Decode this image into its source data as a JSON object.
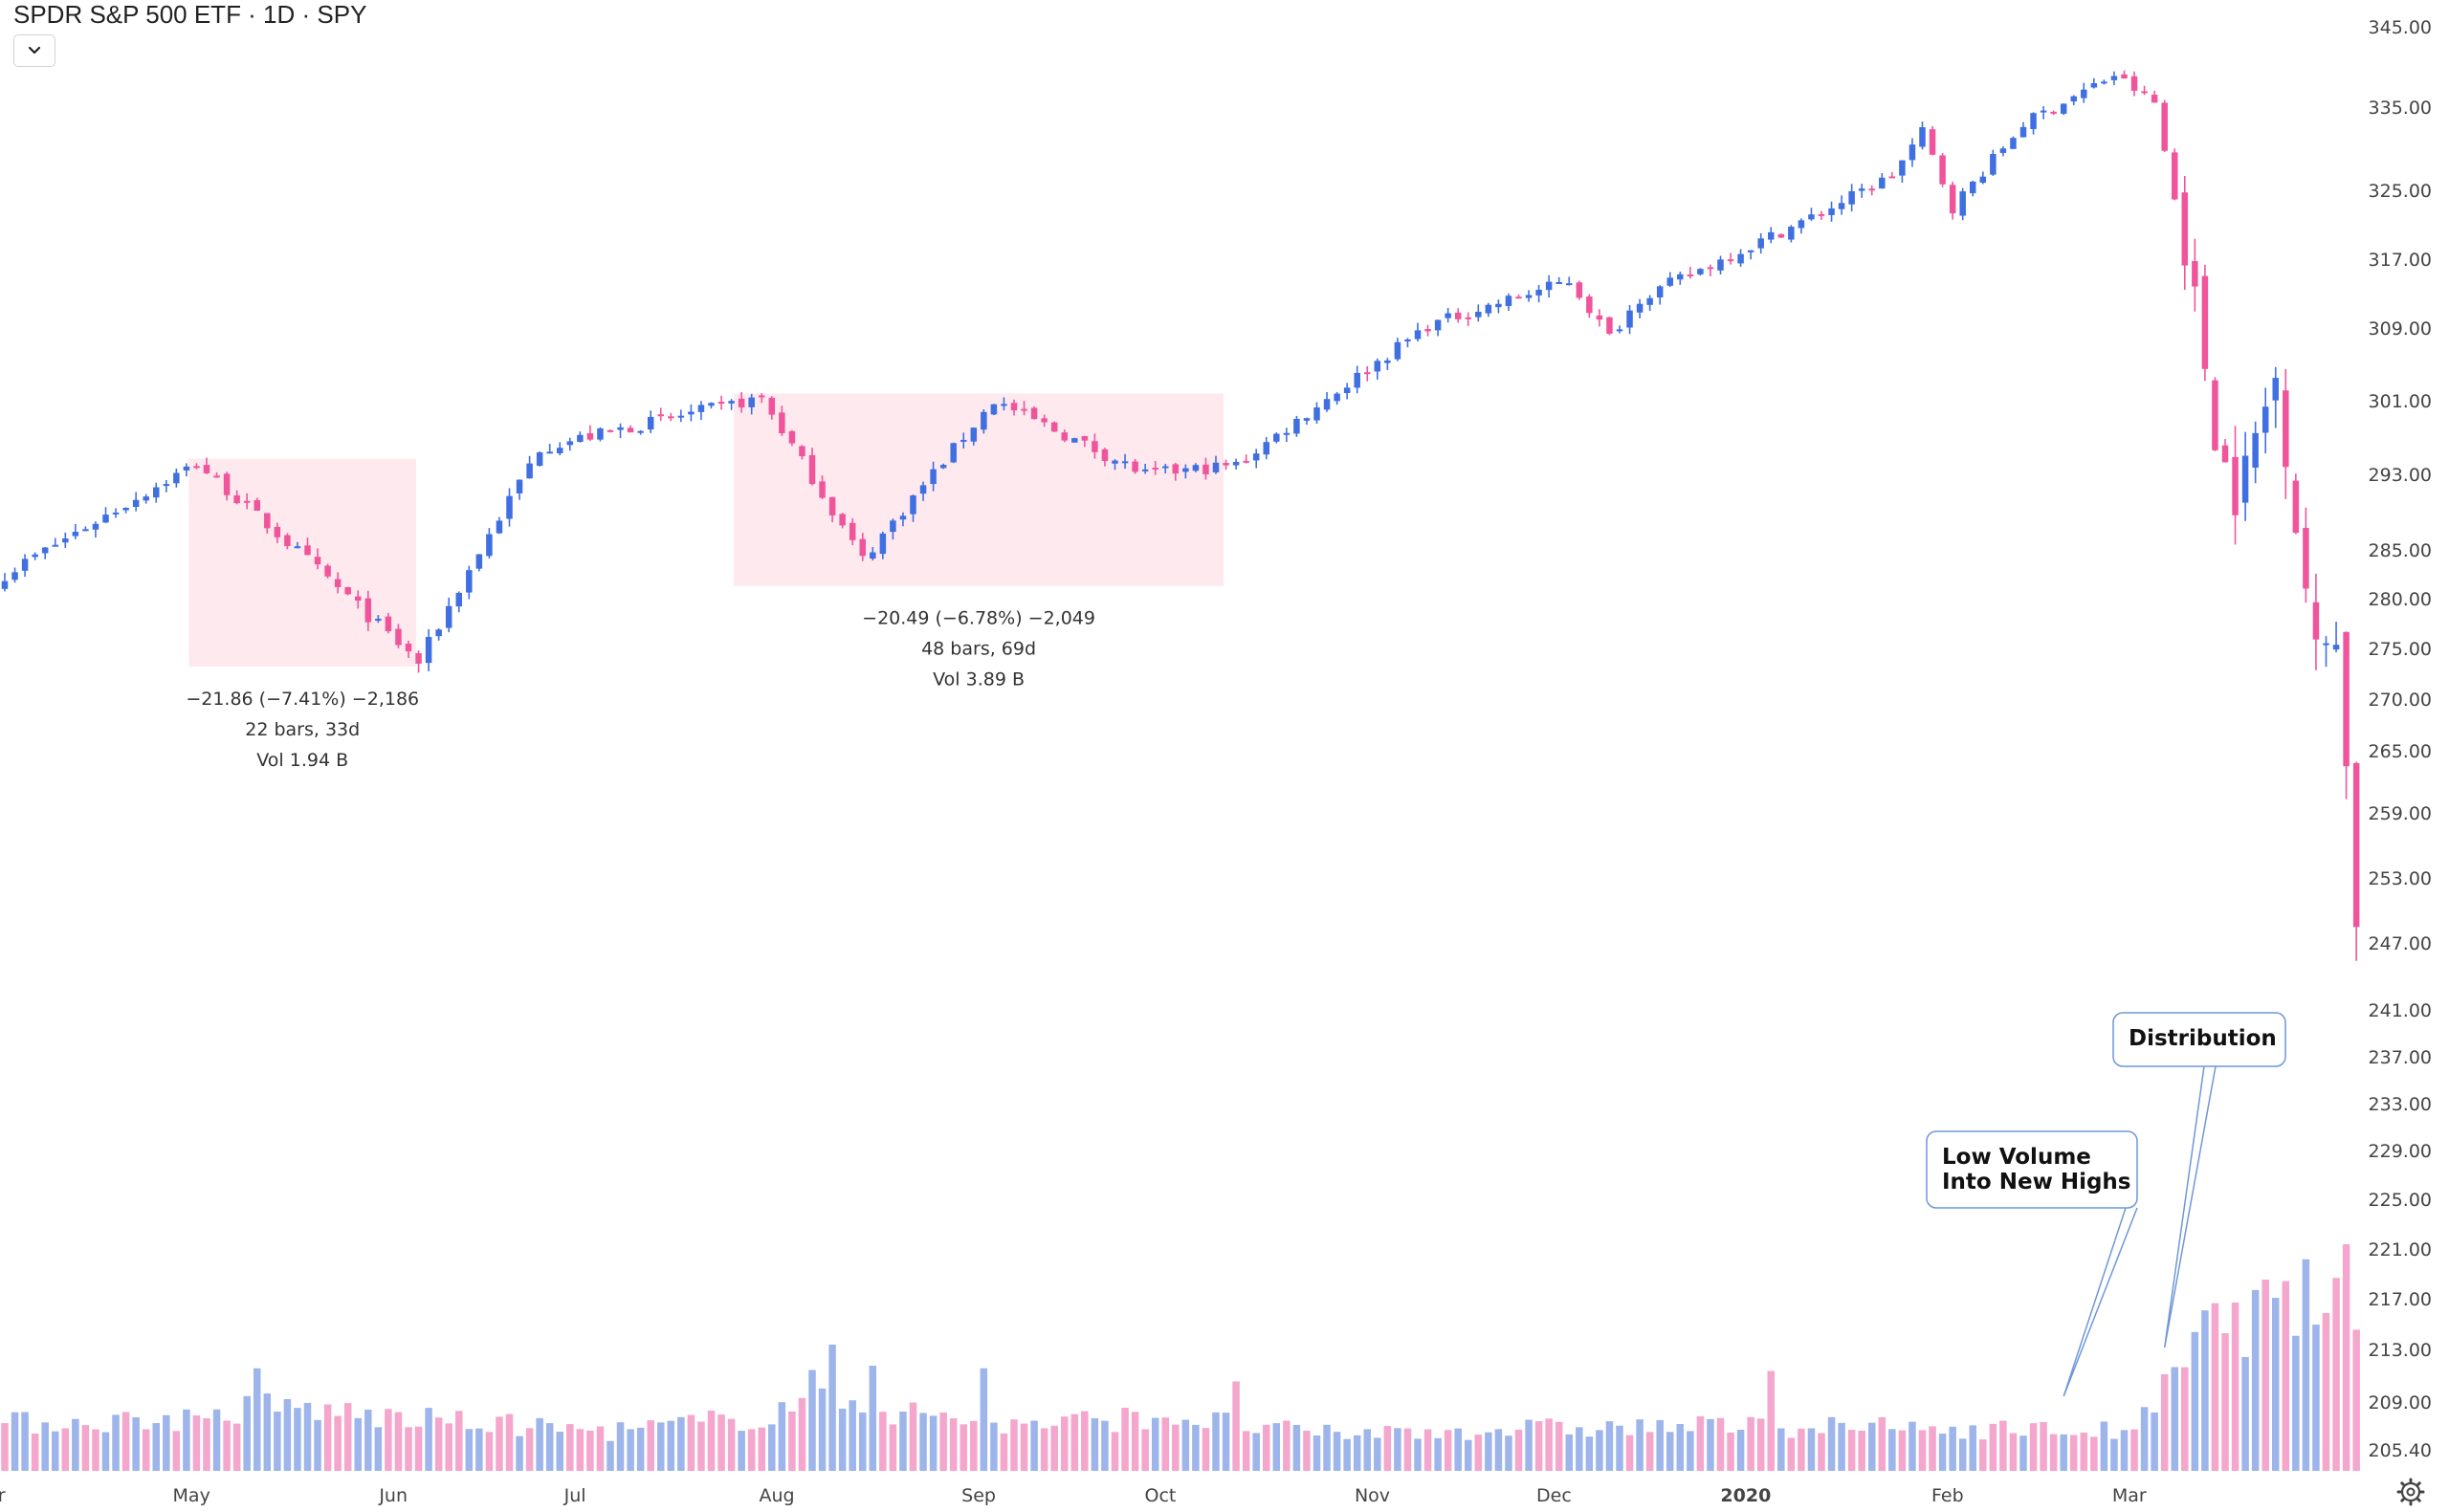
{
  "header": {
    "title": "SPDR S&P 500 ETF · 1D · SPY"
  },
  "icons": {
    "collapse": "chevron-down-icon",
    "settings": "gear-icon"
  },
  "colors": {
    "up": "#3f6fe0",
    "down": "#f0559b",
    "up_volume": "#9db5ea",
    "down_volume": "#f4a6cc",
    "measure_fill": "#fde9ee",
    "callout_border": "#6f97d8"
  },
  "chart_data": [
    {
      "type": "candlestick",
      "title": "SPDR S&P 500 ETF · 1D · SPY",
      "interval": "1D",
      "price_axis": {
        "side": "right",
        "ticks": [
          345.0,
          335.0,
          325.0,
          317.0,
          309.0,
          301.0,
          293.0,
          285.0,
          280.0,
          275.0,
          270.0,
          265.0,
          259.0,
          253.0,
          247.0,
          241.0,
          237.0,
          233.0,
          229.0,
          225.0,
          221.0,
          217.0,
          213.0,
          209.0,
          205.4
        ],
        "tick_labels": [
          "345.00",
          "335.00",
          "325.00",
          "317.00",
          "309.00",
          "301.00",
          "293.00",
          "285.00",
          "280.00",
          "275.00",
          "270.00",
          "265.00",
          "259.00",
          "253.00",
          "247.00",
          "241.00",
          "237.00",
          "233.00",
          "229.00",
          "225.00",
          "221.00",
          "217.00",
          "213.00",
          "209.00",
          "205.40"
        ]
      },
      "time_axis": {
        "labels": [
          "Apr",
          "May",
          "Jun",
          "Jul",
          "Aug",
          "Sep",
          "Oct",
          "Nov",
          "Dec",
          "2020",
          "Feb",
          "Mar"
        ],
        "bold": [
          "2020"
        ],
        "label_days": [
          -1.5,
          18.5,
          38.5,
          56.5,
          76.5,
          96.5,
          114.5,
          135.5,
          153.5,
          172.5,
          192.5,
          210.5
        ]
      },
      "price_path": [
        [
          0,
          282.5
        ],
        [
          19,
          294.2
        ],
        [
          41,
          273.6
        ],
        [
          53,
          295.9
        ],
        [
          65,
          298.9
        ],
        [
          75,
          301.3
        ],
        [
          85,
          284.0
        ],
        [
          98,
          301.0
        ],
        [
          113,
          293.0
        ],
        [
          122,
          294.0
        ],
        [
          141,
          309.3
        ],
        [
          155,
          314.5
        ],
        [
          159,
          308.0
        ],
        [
          162,
          312.5
        ],
        [
          180,
          322.4
        ],
        [
          187,
          326.8
        ],
        [
          190,
          332.0
        ],
        [
          193,
          323.0
        ],
        [
          200,
          333.0
        ],
        [
          209,
          339.0
        ],
        [
          213,
          335.5
        ],
        [
          217,
          312.4
        ],
        [
          219,
          297.5
        ],
        [
          221,
          290.5
        ],
        [
          225,
          303.5
        ],
        [
          227,
          288.0
        ],
        [
          229,
          274.5
        ],
        [
          231,
          277.0
        ],
        [
          233,
          249.5
        ],
        [
          234,
          266.0
        ]
      ],
      "measure_boxes": [
        {
          "from_day": 19,
          "to_day": 40,
          "top": 294.7,
          "bottom": 273.2,
          "lines": [
            "−21.86 (−7.41%) −2,186",
            "22 bars, 33d",
            "Vol 1.94 B"
          ]
        },
        {
          "from_day": 73,
          "to_day": 120,
          "top": 301.8,
          "bottom": 281.3,
          "lines": [
            "−20.49 (−6.78%) −2,049",
            "48 bars, 69d",
            "Vol 3.89 B"
          ]
        }
      ],
      "annotations": [
        {
          "lines": [
            "Low Volume",
            "Into New Highs"
          ],
          "anchor_day": 204
        },
        {
          "lines": [
            "Distribution"
          ],
          "anchor_day": 214
        }
      ]
    },
    {
      "type": "bar",
      "series": [
        {
          "name": "Volume",
          "units": "relative (1.0 = average daily volume)"
        }
      ],
      "volume_profile": [
        [
          0,
          0.9
        ],
        [
          20,
          1.0
        ],
        [
          26,
          1.25
        ],
        [
          39,
          1.0
        ],
        [
          60,
          0.75
        ],
        [
          76,
          1.05
        ],
        [
          80,
          1.6
        ],
        [
          86,
          1.2
        ],
        [
          100,
          0.85
        ],
        [
          115,
          1.05
        ],
        [
          130,
          0.7
        ],
        [
          150,
          0.8
        ],
        [
          170,
          0.85
        ],
        [
          195,
          0.8
        ],
        [
          211,
          0.75
        ],
        [
          214,
          1.5
        ],
        [
          218,
          2.6
        ],
        [
          224,
          3.0
        ],
        [
          234,
          3.6
        ]
      ],
      "volume_spikes": [
        [
          25,
          1.95
        ],
        [
          82,
          2.4
        ],
        [
          86,
          2.0
        ],
        [
          97,
          1.95
        ],
        [
          122,
          1.7
        ],
        [
          175,
          1.9
        ],
        [
          221,
          3.2
        ],
        [
          230,
          3.0
        ],
        [
          234,
          3.4
        ]
      ]
    }
  ]
}
